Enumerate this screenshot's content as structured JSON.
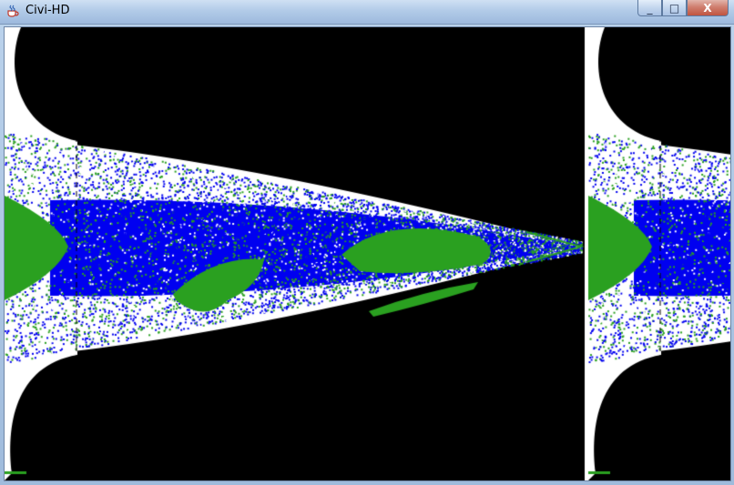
{
  "window": {
    "title": "Civi-HD",
    "app_icon": "java-cup-icon",
    "controls": {
      "minimize_glyph": "_",
      "maximize_glyph": "□",
      "close_glyph": "X"
    }
  },
  "map": {
    "colors": {
      "space": "#000000",
      "background": "#ffffff",
      "ocean": "#0000f0",
      "land": "#2aa020",
      "grid_line": "#000000",
      "frame": "#2aa020"
    }
  }
}
